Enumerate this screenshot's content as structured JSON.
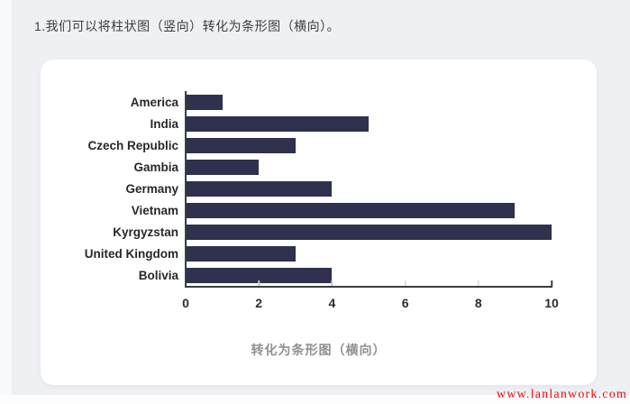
{
  "page": {
    "title": "1.我们可以将柱状图（竖向）转化为条形图（横向）。",
    "background_color": "#eef0f4",
    "card_color": "#ffffff"
  },
  "chart_data": {
    "type": "bar",
    "orientation": "horizontal",
    "categories": [
      "America",
      "India",
      "Czech Republic",
      "Gambia",
      "Germany",
      "Vietnam",
      "Kyrgyzstan",
      "United Kingdom",
      "Bolivia"
    ],
    "values": [
      1,
      5,
      3,
      2,
      4,
      9,
      10,
      3,
      4
    ],
    "bar_color": "#2f314f",
    "xlim": [
      0,
      10
    ],
    "x_ticks": [
      0,
      2,
      4,
      6,
      8,
      10
    ],
    "caption": "转化为条形图（横向）",
    "grid": false,
    "legend": false
  },
  "watermark": {
    "text": "www.lanlanwork.com",
    "color": "#f50505"
  }
}
